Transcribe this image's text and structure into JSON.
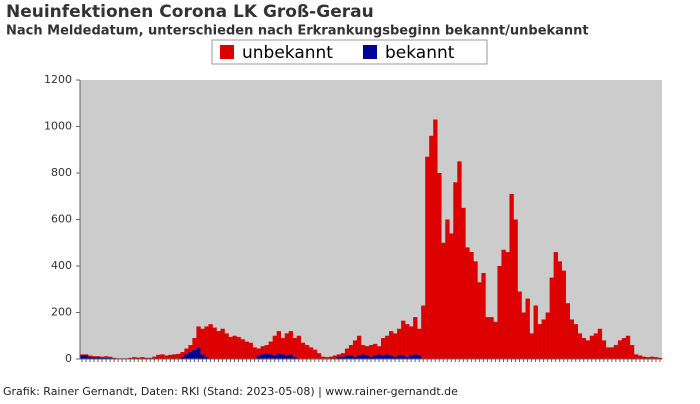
{
  "chart_data": {
    "type": "stacked_bar",
    "title": "Neuinfektionen Corona LK Groß-Gerau",
    "subtitle": "Nach Meldedatum, unterschieden nach Erkrankungsbeginn bekannt/unbekannt",
    "footer": "Grafik: Rainer Gernandt, Daten: RKI (Stand: 2023-05-08) | www.rainer-gernandt.de",
    "categories": [
      null,
      null,
      null,
      null,
      null,
      null,
      null,
      null,
      null,
      null,
      null,
      null,
      null,
      null,
      null,
      null,
      null,
      null,
      null,
      null,
      null,
      null,
      null,
      null,
      null,
      null,
      null,
      null,
      null,
      null,
      null,
      null,
      null,
      null,
      null,
      null,
      null,
      null,
      null,
      null,
      null,
      null,
      null,
      null,
      null,
      null,
      null,
      null,
      null,
      null,
      null,
      null,
      null,
      null,
      null,
      null,
      null,
      null,
      null,
      null,
      null,
      null,
      null,
      null,
      null,
      null,
      null,
      null,
      null,
      null,
      null,
      null,
      null,
      null,
      null,
      null,
      null,
      null,
      null,
      null,
      null,
      null,
      null,
      null,
      null,
      null,
      null,
      null,
      null,
      null,
      null,
      null,
      null,
      null,
      null,
      null,
      null,
      null,
      null,
      null,
      null,
      null,
      null,
      null,
      null,
      null,
      null,
      null,
      null,
      null,
      null,
      null,
      null,
      null,
      null,
      null,
      null,
      null,
      null,
      null,
      null,
      null,
      null,
      null,
      null,
      null,
      null,
      null,
      null,
      null,
      null,
      null,
      null,
      null,
      null,
      null,
      null,
      null,
      null,
      null,
      null,
      null,
      null,
      null,
      null
    ],
    "series": [
      {
        "name": "unbekannt",
        "color": "#dd0000",
        "values": [
          5,
          5,
          5,
          4,
          4,
          4,
          7,
          5,
          5,
          3,
          3,
          3,
          5,
          8,
          6,
          8,
          5,
          5,
          10,
          18,
          20,
          15,
          18,
          20,
          22,
          20,
          25,
          30,
          50,
          90,
          110,
          130,
          150,
          135,
          120,
          130,
          110,
          95,
          100,
          95,
          85,
          75,
          70,
          50,
          30,
          35,
          35,
          55,
          85,
          95,
          70,
          95,
          100,
          80,
          100,
          70,
          60,
          50,
          40,
          25,
          10,
          8,
          10,
          15,
          10,
          15,
          30,
          45,
          70,
          85,
          40,
          40,
          50,
          50,
          35,
          75,
          80,
          105,
          100,
          115,
          150,
          140,
          125,
          160,
          115,
          230,
          870,
          960,
          1030,
          800,
          500,
          600,
          540,
          760,
          850,
          650,
          480,
          460,
          420,
          330,
          370,
          180,
          180,
          160,
          400,
          470,
          460,
          710,
          600,
          290,
          200,
          260,
          110,
          230,
          150,
          170,
          200,
          350,
          460,
          420,
          380,
          240,
          170,
          150,
          110,
          90,
          80,
          100,
          110,
          130,
          80,
          50,
          50,
          60,
          80,
          90,
          100,
          60,
          20,
          15,
          10,
          8,
          10,
          8,
          5
        ]
      },
      {
        "name": "bekannt",
        "color": "#000099",
        "values": [
          15,
          15,
          10,
          8,
          8,
          6,
          5,
          5,
          0,
          0,
          0,
          0,
          0,
          0,
          0,
          0,
          0,
          0,
          0,
          0,
          0,
          0,
          0,
          0,
          0,
          10,
          20,
          30,
          40,
          50,
          20,
          10,
          0,
          0,
          0,
          0,
          0,
          0,
          0,
          0,
          0,
          0,
          0,
          0,
          15,
          20,
          25,
          20,
          15,
          25,
          20,
          15,
          20,
          10,
          0,
          0,
          0,
          0,
          0,
          0,
          0,
          0,
          0,
          0,
          10,
          10,
          15,
          15,
          10,
          15,
          20,
          15,
          10,
          15,
          20,
          15,
          20,
          15,
          10,
          15,
          15,
          10,
          15,
          20,
          15,
          0,
          0,
          0,
          0,
          0,
          0,
          0,
          0,
          0,
          0,
          0,
          0,
          0,
          0,
          0,
          0,
          0,
          0,
          0,
          0,
          0,
          0,
          0,
          0,
          0,
          0,
          0,
          0,
          0,
          0,
          0,
          0,
          0,
          0,
          0,
          0,
          0,
          0,
          0,
          0,
          0,
          0,
          0,
          0,
          0,
          0,
          0,
          0,
          0,
          0,
          0,
          0,
          0,
          0,
          0,
          0,
          0,
          0,
          0,
          0
        ]
      }
    ],
    "ylim": [
      0,
      1200
    ],
    "yticks": [
      0,
      200,
      400,
      600,
      800,
      1000,
      1200
    ],
    "grid": false,
    "plot_background": "#cccccc"
  }
}
